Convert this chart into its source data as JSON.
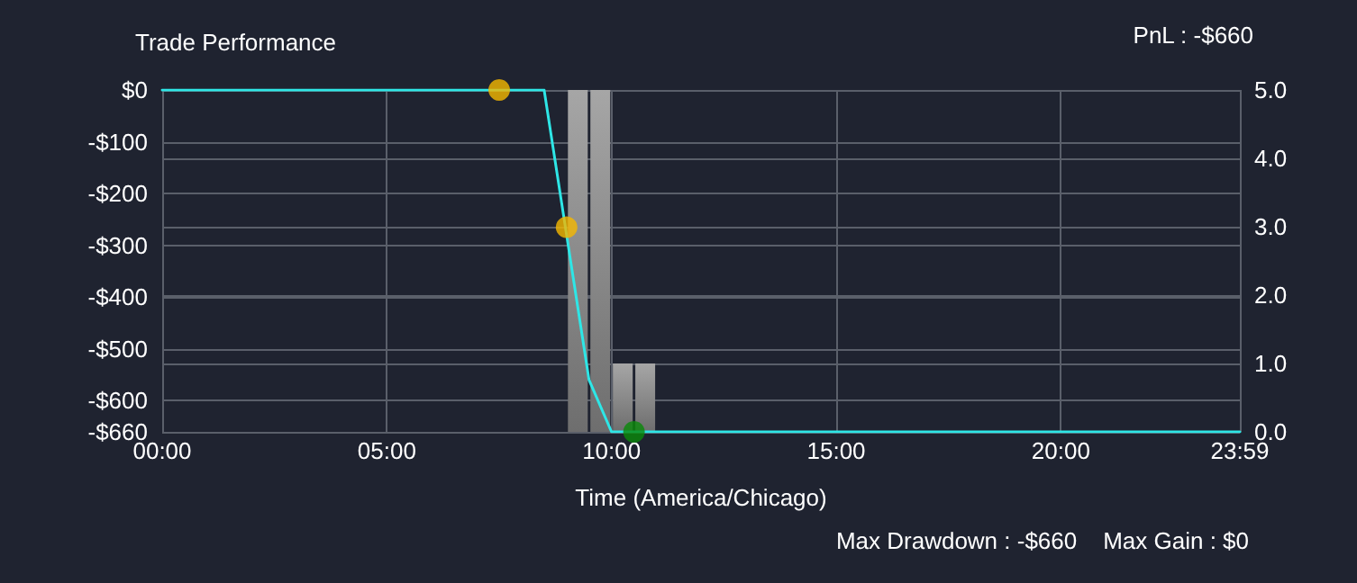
{
  "chart_data": {
    "type": "line",
    "title": "Trade Performance",
    "xlabel": "Time (America/Chicago)",
    "annotations": [
      "PnL : -$660",
      "Max Drawdown : -$660    Max Gain : $0"
    ],
    "xlim": [
      0,
      23.9833
    ],
    "xticks": [
      {
        "value": 0,
        "label": "00:00"
      },
      {
        "value": 5,
        "label": "05:00"
      },
      {
        "value": 10,
        "label": "10:00"
      },
      {
        "value": 15,
        "label": "15:00"
      },
      {
        "value": 20,
        "label": "20:00"
      },
      {
        "value": 23.9833,
        "label": "23:59"
      }
    ],
    "ylim": [
      -660,
      0
    ],
    "yticks": [
      {
        "value": -660,
        "label": "-$660"
      },
      {
        "value": -600,
        "label": "-$600"
      },
      {
        "value": -500,
        "label": "-$500"
      },
      {
        "value": -400,
        "label": "-$400"
      },
      {
        "value": -300,
        "label": "-$300"
      },
      {
        "value": -200,
        "label": "-$200"
      },
      {
        "value": -100,
        "label": "-$100"
      },
      {
        "value": 0,
        "label": "$0"
      }
    ],
    "y2lim": [
      0,
      5
    ],
    "y2ticks": [
      {
        "value": 0,
        "label": "0.0"
      },
      {
        "value": 1,
        "label": "1.0"
      },
      {
        "value": 2,
        "label": "2.0"
      },
      {
        "value": 3,
        "label": "3.0"
      },
      {
        "value": 4,
        "label": "4.0"
      },
      {
        "value": 5,
        "label": "5.0"
      }
    ],
    "grid": true,
    "series": [
      {
        "type": "bar",
        "axis": "y2",
        "color": "#a6a6a6",
        "x": [
          9.25,
          9.75,
          10.25,
          10.75
        ],
        "values": [
          5,
          5,
          1,
          1
        ]
      },
      {
        "color": "#2ee6e6",
        "marker": "none",
        "line_style": "solid",
        "x": [
          0,
          8.5,
          9.5,
          10,
          23.9833
        ],
        "values": [
          0,
          0,
          -560,
          -660,
          -660
        ]
      },
      {
        "type": "scatter",
        "color": "#f5b800",
        "marker": "circle",
        "x": [
          7.5,
          9
        ],
        "values": [
          0,
          -265
        ]
      },
      {
        "type": "scatter",
        "color": "#0a8a0a",
        "marker": "circle",
        "x": [
          10.5
        ],
        "values": [
          -660
        ]
      }
    ]
  }
}
